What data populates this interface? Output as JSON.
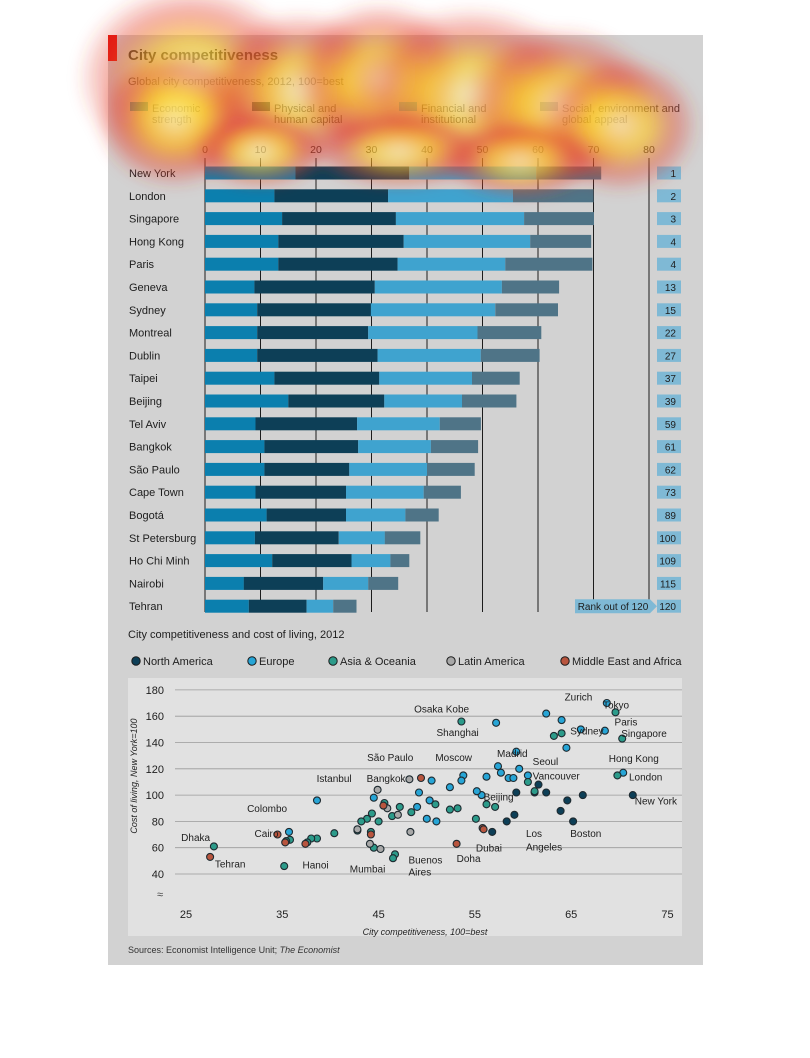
{
  "header": {
    "title": "City competitiveness",
    "subtitle": "Global city competitiveness, 2012, 100=best"
  },
  "colors": {
    "economic": "#0b7fae",
    "human": "#0d3f57",
    "financial": "#3fa3cf",
    "social": "#4f7487",
    "rank_bg": "#7fb9d5",
    "north_america": "#0d3f57",
    "europe": "#27a5d6",
    "asia_oceania": "#2c9b8a",
    "latin_america": "#a8a8a8",
    "middle_east_africa": "#b8553e",
    "heat_hot": "#fff8c0",
    "heat_mid": "#ffd21e",
    "heat_edge": "#e33b2a"
  },
  "legend": [
    {
      "label": "Economic\nstrength",
      "key": "economic"
    },
    {
      "label": "Physical and\nhuman capital",
      "key": "human"
    },
    {
      "label": "Financial and\ninstitutional",
      "key": "financial"
    },
    {
      "label": "Social, environment and\nglobal appeal",
      "key": "social"
    }
  ],
  "rank_label": "Rank out of 120",
  "chart_data": [
    {
      "type": "bar",
      "stacked": true,
      "orientation": "horizontal",
      "xlim": [
        0,
        80
      ],
      "xticks": [
        0,
        10,
        20,
        30,
        40,
        50,
        60,
        70,
        80
      ],
      "series_names": [
        "Economic strength",
        "Physical and human capital",
        "Financial and institutional",
        "Social, environment and global appeal"
      ],
      "categories": [
        "New York",
        "London",
        "Singapore",
        "Hong Kong",
        "Paris",
        "Geneva",
        "Sydney",
        "Montreal",
        "Dublin",
        "Taipei",
        "Beijing",
        "Tel Aviv",
        "Bangkok",
        "São Paulo",
        "Cape Town",
        "Bogotá",
        "St Petersburg",
        "Ho Chi Minh",
        "Nairobi",
        "Tehran"
      ],
      "values": [
        [
          16.3,
          20.5,
          22.9,
          11.7
        ],
        [
          12.5,
          20.5,
          22.5,
          14.5
        ],
        [
          13.9,
          20.5,
          23.1,
          12.6
        ],
        [
          13.2,
          22.6,
          22.8,
          11.0
        ],
        [
          13.2,
          21.5,
          19.4,
          15.7
        ],
        [
          8.9,
          21.7,
          22.9,
          10.3
        ],
        [
          9.4,
          20.5,
          22.4,
          11.3
        ],
        [
          9.4,
          20.0,
          19.7,
          11.5
        ],
        [
          9.4,
          21.7,
          18.6,
          10.6
        ],
        [
          12.5,
          18.9,
          16.7,
          8.6
        ],
        [
          15.0,
          17.3,
          14.0,
          9.8
        ],
        [
          9.1,
          18.3,
          14.9,
          7.4
        ],
        [
          10.7,
          16.9,
          13.1,
          8.5
        ],
        [
          10.7,
          15.3,
          14.0,
          8.6
        ],
        [
          9.1,
          16.3,
          14.0,
          6.7
        ],
        [
          11.1,
          14.3,
          10.7,
          6.0
        ],
        [
          9.0,
          15.1,
          8.3,
          6.4
        ],
        [
          12.1,
          14.3,
          7.0,
          3.4
        ],
        [
          7.0,
          14.3,
          8.1,
          5.4
        ],
        [
          7.9,
          10.4,
          4.8,
          4.2
        ]
      ],
      "ranks": [
        "1",
        "2",
        "3",
        "4",
        "4",
        "13",
        "15",
        "22",
        "27",
        "37",
        "39",
        "59",
        "61",
        "62",
        "73",
        "89",
        "100",
        "109",
        "115",
        "120"
      ]
    },
    {
      "type": "scatter",
      "title": "City competitiveness and cost of living, 2012",
      "xlabel": "City competitiveness, 100=best",
      "ylabel": "Cost of living, New York=100",
      "xlim": [
        25,
        75
      ],
      "ylim": [
        40,
        180
      ],
      "xticks": [
        25,
        35,
        45,
        55,
        65,
        75
      ],
      "yticks": [
        40,
        60,
        80,
        100,
        120,
        140,
        160,
        180
      ],
      "grid": true,
      "legend_position": "top",
      "series": [
        {
          "name": "North America",
          "key": "north_america",
          "points": [
            [
              71.4,
              100
            ],
            [
              66.2,
              100
            ],
            [
              64.6,
              96
            ],
            [
              61.2,
              102
            ],
            [
              61.6,
              108
            ],
            [
              62.4,
              102
            ],
            [
              59.3,
              102
            ],
            [
              59.1,
              85
            ],
            [
              58.3,
              80
            ],
            [
              56.8,
              72
            ],
            [
              63.9,
              88
            ],
            [
              65.2,
              80
            ]
          ]
        },
        {
          "name": "Europe",
          "key": "europe",
          "points": [
            [
              70.4,
              117
            ],
            [
              68.7,
              170
            ],
            [
              68.5,
              149
            ],
            [
              66.0,
              150
            ],
            [
              64.5,
              136
            ],
            [
              62.4,
              162
            ],
            [
              64.0,
              157
            ],
            [
              57.2,
              155
            ],
            [
              59.3,
              133
            ],
            [
              60.5,
              115
            ],
            [
              58.5,
              113
            ],
            [
              57.7,
              117
            ],
            [
              56.2,
              114
            ],
            [
              57.4,
              122
            ],
            [
              59.6,
              120
            ],
            [
              59.0,
              113
            ],
            [
              55.7,
              100
            ],
            [
              53.8,
              115
            ],
            [
              55.2,
              103
            ],
            [
              53.6,
              111
            ],
            [
              52.4,
              106
            ],
            [
              50.3,
              96
            ],
            [
              49.0,
              91
            ],
            [
              49.2,
              102
            ],
            [
              50.5,
              111
            ],
            [
              50.0,
              82
            ],
            [
              51.0,
              80
            ],
            [
              44.5,
              98
            ],
            [
              38.6,
              96
            ],
            [
              35.7,
              72
            ]
          ]
        },
        {
          "name": "Asia & Oceania",
          "key": "asia_oceania",
          "points": [
            [
              70.3,
              143
            ],
            [
              69.6,
              163
            ],
            [
              69.8,
              115
            ],
            [
              63.2,
              145
            ],
            [
              64.0,
              147
            ],
            [
              53.6,
              156
            ],
            [
              60.5,
              110
            ],
            [
              61.2,
              103
            ],
            [
              57.1,
              91
            ],
            [
              56.2,
              93
            ],
            [
              55.1,
              82
            ],
            [
              53.2,
              90
            ],
            [
              52.4,
              89
            ],
            [
              48.4,
              87
            ],
            [
              47.2,
              91
            ],
            [
              45.6,
              94
            ],
            [
              45.0,
              80
            ],
            [
              43.8,
              82
            ],
            [
              44.3,
              86
            ],
            [
              46.4,
              84
            ],
            [
              46.7,
              55
            ],
            [
              46.5,
              52
            ],
            [
              44.2,
              72
            ],
            [
              44.5,
              60
            ],
            [
              40.4,
              71
            ],
            [
              38.6,
              67
            ],
            [
              38.0,
              67
            ],
            [
              37.6,
              64
            ],
            [
              35.8,
              66
            ],
            [
              35.4,
              65
            ],
            [
              35.2,
              46
            ],
            [
              27.9,
              61
            ],
            [
              43.2,
              80
            ],
            [
              42.8,
              73
            ],
            [
              50.9,
              93
            ]
          ]
        },
        {
          "name": "Latin America",
          "key": "latin_america",
          "points": [
            [
              44.9,
              104
            ],
            [
              48.2,
              112
            ],
            [
              42.8,
              74
            ],
            [
              44.1,
              63
            ],
            [
              45.2,
              59
            ],
            [
              48.3,
              72
            ],
            [
              47.0,
              85
            ],
            [
              45.9,
              90
            ]
          ]
        },
        {
          "name": "Middle East and Africa",
          "key": "middle_east_africa",
          "points": [
            [
              27.5,
              53
            ],
            [
              34.5,
              70
            ],
            [
              35.3,
              64
            ],
            [
              37.4,
              63
            ],
            [
              44.2,
              70
            ],
            [
              45.5,
              92
            ],
            [
              49.4,
              113
            ],
            [
              53.1,
              63
            ],
            [
              55.8,
              75
            ],
            [
              55.9,
              74
            ]
          ]
        }
      ],
      "annotations": [
        {
          "text": "Zurich",
          "x": 67.2,
          "y": 172,
          "anchor": "end"
        },
        {
          "text": "Tokyo",
          "x": 68.3,
          "y": 166,
          "anchor": "start"
        },
        {
          "text": "Osaka Kobe",
          "x": 54.4,
          "y": 163,
          "anchor": "end"
        },
        {
          "text": "Paris",
          "x": 69.5,
          "y": 153,
          "anchor": "start"
        },
        {
          "text": "Singapore",
          "x": 70.2,
          "y": 144,
          "anchor": "start"
        },
        {
          "text": "Shanghai",
          "x": 55.4,
          "y": 145,
          "anchor": "end"
        },
        {
          "text": "Sydney",
          "x": 64.9,
          "y": 146,
          "anchor": "start"
        },
        {
          "text": "São Paulo",
          "x": 48.6,
          "y": 126,
          "anchor": "end"
        },
        {
          "text": "Moscow",
          "x": 54.7,
          "y": 126,
          "anchor": "end"
        },
        {
          "text": "Madrid",
          "x": 57.3,
          "y": 129,
          "anchor": "start"
        },
        {
          "text": "Seoul",
          "x": 61.0,
          "y": 123,
          "anchor": "start"
        },
        {
          "text": "Hong Kong",
          "x": 68.9,
          "y": 125,
          "anchor": "start"
        },
        {
          "text": "Vancouver",
          "x": 61.0,
          "y": 112,
          "anchor": "start"
        },
        {
          "text": "London",
          "x": 71.0,
          "y": 111,
          "anchor": "start"
        },
        {
          "text": "Istanbul",
          "x": 42.2,
          "y": 110,
          "anchor": "end"
        },
        {
          "text": "Bangkok",
          "x": 47.8,
          "y": 110,
          "anchor": "end"
        },
        {
          "text": "Beijing",
          "x": 55.9,
          "y": 96,
          "anchor": "start"
        },
        {
          "text": "New York",
          "x": 71.6,
          "y": 93,
          "anchor": "start"
        },
        {
          "text": "Colombo",
          "x": 35.5,
          "y": 87,
          "anchor": "end"
        },
        {
          "text": "Cairo",
          "x": 34.6,
          "y": 68,
          "anchor": "end"
        },
        {
          "text": "Los",
          "x": 60.3,
          "y": 68,
          "anchor": "start"
        },
        {
          "text": "Boston",
          "x": 64.9,
          "y": 68,
          "anchor": "start"
        },
        {
          "text": "Angeles",
          "x": 60.3,
          "y": 58,
          "anchor": "start"
        },
        {
          "text": "Dubai",
          "x": 55.1,
          "y": 57,
          "anchor": "start"
        },
        {
          "text": "Dhaka",
          "x": 27.5,
          "y": 65,
          "anchor": "end"
        },
        {
          "text": "Doha",
          "x": 53.1,
          "y": 49,
          "anchor": "start"
        },
        {
          "text": "Buenos",
          "x": 48.1,
          "y": 48,
          "anchor": "start"
        },
        {
          "text": "Aires",
          "x": 48.1,
          "y": 39,
          "anchor": "start"
        },
        {
          "text": "Hanoi",
          "x": 37.1,
          "y": 44,
          "anchor": "start"
        },
        {
          "text": "Tehran",
          "x": 28.0,
          "y": 45,
          "anchor": "start"
        },
        {
          "text": "Mumbai",
          "x": 45.7,
          "y": 41,
          "anchor": "end"
        }
      ]
    }
  ],
  "sources": {
    "prefix": "Sources: Economist Intelligence Unit; ",
    "italic": "The Economist"
  }
}
